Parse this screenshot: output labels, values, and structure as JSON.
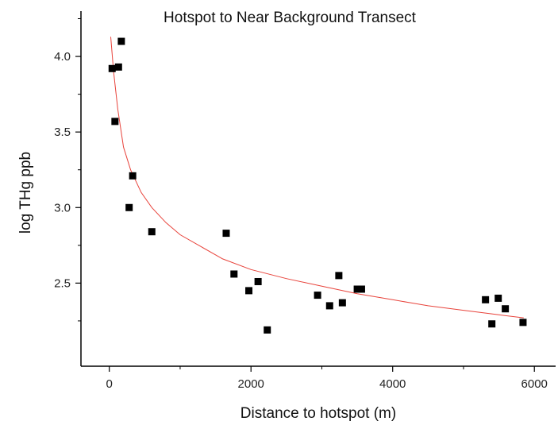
{
  "chart_data": {
    "type": "scatter",
    "title": "Hotspot to Near Background Transect",
    "xlabel": "Distance to hotspot (m)",
    "ylabel": "log THg ppb",
    "xlim": [
      -400,
      6300
    ],
    "ylim": [
      1.95,
      4.3
    ],
    "x_ticks": [
      0,
      2000,
      4000,
      6000
    ],
    "x_tick_labels": [
      "0",
      "2000",
      "4000",
      "6000"
    ],
    "y_ticks": [
      2.5,
      3.0,
      3.5,
      4.0
    ],
    "y_tick_labels": [
      "2.5",
      "3.0",
      "3.5",
      "4.0"
    ],
    "grid": false,
    "legend": "none",
    "series": [
      {
        "type": "scatter",
        "marker": "square",
        "color": "#000000",
        "points": [
          {
            "x": 40,
            "y": 3.92
          },
          {
            "x": 80,
            "y": 3.57
          },
          {
            "x": 130,
            "y": 3.93
          },
          {
            "x": 170,
            "y": 4.1
          },
          {
            "x": 280,
            "y": 3.0
          },
          {
            "x": 330,
            "y": 3.21
          },
          {
            "x": 600,
            "y": 2.84
          },
          {
            "x": 1650,
            "y": 2.83
          },
          {
            "x": 1760,
            "y": 2.56
          },
          {
            "x": 1970,
            "y": 2.45
          },
          {
            "x": 2100,
            "y": 2.51
          },
          {
            "x": 2230,
            "y": 2.19
          },
          {
            "x": 2940,
            "y": 2.42
          },
          {
            "x": 3110,
            "y": 2.35
          },
          {
            "x": 3240,
            "y": 2.55
          },
          {
            "x": 3290,
            "y": 2.37
          },
          {
            "x": 3500,
            "y": 2.46
          },
          {
            "x": 3560,
            "y": 2.46
          },
          {
            "x": 5310,
            "y": 2.39
          },
          {
            "x": 5400,
            "y": 2.23
          },
          {
            "x": 5490,
            "y": 2.4
          },
          {
            "x": 5590,
            "y": 2.33
          },
          {
            "x": 5840,
            "y": 2.24
          }
        ]
      },
      {
        "type": "line",
        "color": "#e8433b",
        "fit": "logarithmic",
        "points": [
          {
            "x": 20,
            "y": 4.13
          },
          {
            "x": 60,
            "y": 3.9
          },
          {
            "x": 120,
            "y": 3.65
          },
          {
            "x": 200,
            "y": 3.4
          },
          {
            "x": 300,
            "y": 3.25
          },
          {
            "x": 450,
            "y": 3.1
          },
          {
            "x": 600,
            "y": 3.0
          },
          {
            "x": 800,
            "y": 2.9
          },
          {
            "x": 1000,
            "y": 2.82
          },
          {
            "x": 1300,
            "y": 2.74
          },
          {
            "x": 1600,
            "y": 2.66
          },
          {
            "x": 2000,
            "y": 2.59
          },
          {
            "x": 2500,
            "y": 2.53
          },
          {
            "x": 3000,
            "y": 2.48
          },
          {
            "x": 3500,
            "y": 2.43
          },
          {
            "x": 4000,
            "y": 2.39
          },
          {
            "x": 4500,
            "y": 2.35
          },
          {
            "x": 5000,
            "y": 2.32
          },
          {
            "x": 5500,
            "y": 2.29
          },
          {
            "x": 5850,
            "y": 2.27
          }
        ]
      }
    ]
  }
}
